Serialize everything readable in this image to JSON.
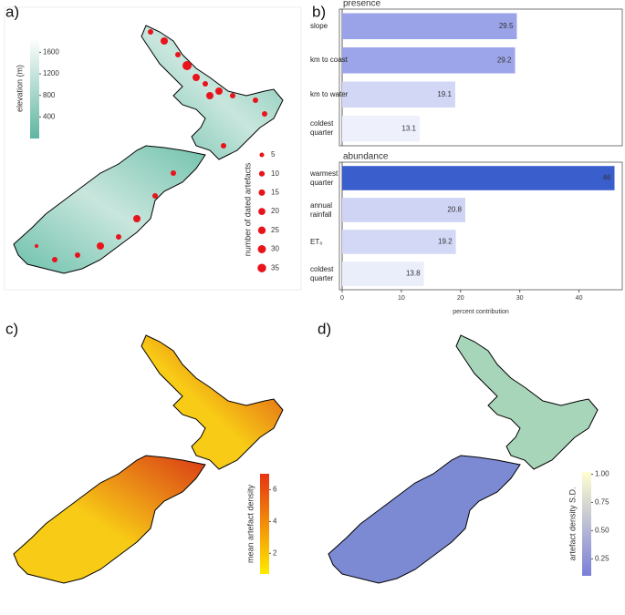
{
  "panels": {
    "a": "a)",
    "b": "b)",
    "c": "c)",
    "d": "d)"
  },
  "chart_data": [
    {
      "type": "bar",
      "orientation": "horizontal",
      "title": "presence",
      "categories": [
        "slope",
        "km to coast",
        "km to water",
        "coldest quarter"
      ],
      "values": [
        29.5,
        29.2,
        19.1,
        13.1
      ],
      "colors": [
        "#9aa3e8",
        "#9ca5e9",
        "#d3d7f6",
        "#eef1fc"
      ],
      "xlim": [
        0,
        47
      ]
    },
    {
      "type": "bar",
      "orientation": "horizontal",
      "title": "abundance",
      "categories": [
        "warmest quarter",
        "annual rainfall",
        "ET₀",
        "coldest quarter"
      ],
      "values": [
        46,
        20.8,
        19.2,
        13.8
      ],
      "colors": [
        "#3a5fcd",
        "#cfd4f5",
        "#d3d8f6",
        "#eaeefb"
      ],
      "xlim": [
        0,
        47
      ],
      "xticks": [
        0,
        10,
        20,
        30,
        40
      ],
      "xlabel": "percent contribution"
    }
  ],
  "maps": {
    "elevation": {
      "label": "elevation (m)",
      "lim": [
        0,
        1860
      ],
      "ticks": [
        400,
        800,
        1200,
        1600
      ],
      "colors": [
        "#5fb5a0",
        "#ffffff"
      ]
    },
    "artefacts": {
      "label": "number of dated artefacts",
      "sizes": [
        5,
        10,
        15,
        20,
        25,
        30,
        35
      ],
      "color": "#e8141c"
    },
    "density": {
      "label": "mean artefact density",
      "lim": [
        0.7,
        7
      ],
      "ticks": [
        2,
        4,
        6
      ],
      "colors": [
        "#ffea00",
        "#e63312"
      ]
    },
    "sd": {
      "label": "artefact density S.D.",
      "lim": [
        0.1,
        1.02
      ],
      "ticks": [
        0.25,
        {
          "value": 0.5,
          "label": "0.50"
        },
        0.75,
        {
          "value": 1,
          "label": "1.00"
        }
      ],
      "colors": [
        "#7a7fd8",
        "#ffffd0"
      ]
    }
  }
}
